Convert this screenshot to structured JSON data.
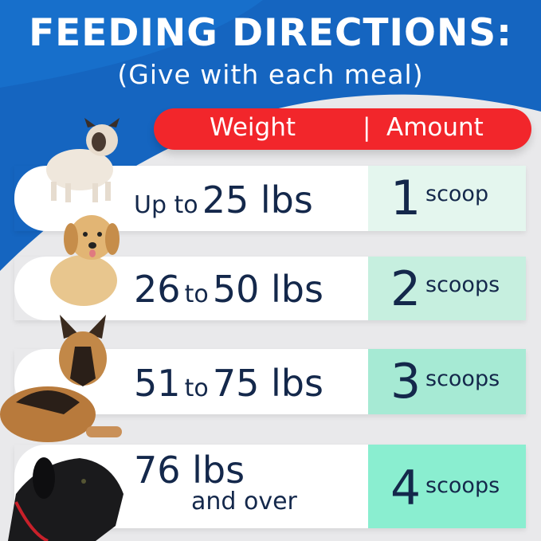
{
  "header": {
    "title": "FEEDING DIRECTIONS:",
    "subtitle": "(Give with each meal)"
  },
  "table_header": {
    "weight": "Weight",
    "separator": "|",
    "amount": "Amount"
  },
  "rows": [
    {
      "pre": "Up to",
      "weight": "25 lbs",
      "mid": "",
      "weight2": "",
      "amount": "1",
      "unit": "scoop",
      "dog": "french-bulldog",
      "color": "#e4f6ee"
    },
    {
      "pre": "",
      "weight": "26",
      "mid": "to",
      "weight2": "50 lbs",
      "amount": "2",
      "unit": "scoops",
      "dog": "golden-retriever-puppy",
      "color": "#c6efdf"
    },
    {
      "pre": "",
      "weight": "51",
      "mid": "to",
      "weight2": "75 lbs",
      "amount": "3",
      "unit": "scoops",
      "dog": "german-shepherd",
      "color": "#a6ead4"
    },
    {
      "pre": "",
      "weight": "76 lbs",
      "mid": "and over",
      "weight2": "",
      "amount": "4",
      "unit": "scoops",
      "dog": "great-dane",
      "color": "#8aeed0"
    }
  ],
  "colors": {
    "blue": "#1565c0",
    "red": "#f2262b",
    "navy": "#14284b"
  }
}
